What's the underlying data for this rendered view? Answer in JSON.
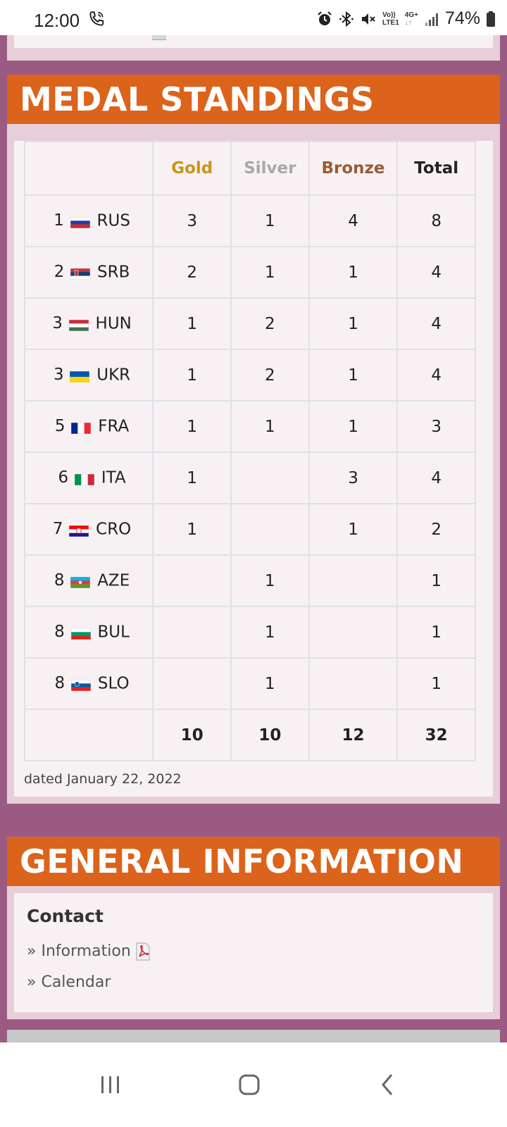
{
  "status_bar": {
    "time": "12:00",
    "network_top": "Vo))",
    "network_bottom": "LTE1",
    "data_label": "4G+",
    "battery_percent": "74%",
    "icons": [
      "phone-call-icon",
      "alarm-icon",
      "bluetooth-icon",
      "mute-icon",
      "signal-icon",
      "battery-icon"
    ]
  },
  "medal_standings": {
    "title": "MEDAL STANDINGS",
    "headers": {
      "nation": "",
      "gold": "Gold",
      "silver": "Silver",
      "bronze": "Bronze",
      "total": "Total"
    },
    "header_colors": {
      "gold": "#c9961a",
      "silver": "#a8a8a8",
      "bronze": "#9a5c35"
    },
    "rows": [
      {
        "rank": "1",
        "code": "RUS",
        "flag": "flag-russia",
        "gold": "3",
        "silver": "1",
        "bronze": "4",
        "total": "8"
      },
      {
        "rank": "2",
        "code": "SRB",
        "flag": "flag-serbia",
        "gold": "2",
        "silver": "1",
        "bronze": "1",
        "total": "4"
      },
      {
        "rank": "3",
        "code": "HUN",
        "flag": "flag-hungary",
        "gold": "1",
        "silver": "2",
        "bronze": "1",
        "total": "4"
      },
      {
        "rank": "3",
        "code": "UKR",
        "flag": "flag-ukraine",
        "gold": "1",
        "silver": "2",
        "bronze": "1",
        "total": "4"
      },
      {
        "rank": "5",
        "code": "FRA",
        "flag": "flag-france",
        "gold": "1",
        "silver": "1",
        "bronze": "1",
        "total": "3"
      },
      {
        "rank": "6",
        "code": "ITA",
        "flag": "flag-italy",
        "gold": "1",
        "silver": "",
        "bronze": "3",
        "total": "4"
      },
      {
        "rank": "7",
        "code": "CRO",
        "flag": "flag-croatia",
        "gold": "1",
        "silver": "",
        "bronze": "1",
        "total": "2"
      },
      {
        "rank": "8",
        "code": "AZE",
        "flag": "flag-azerbaijan",
        "gold": "",
        "silver": "1",
        "bronze": "",
        "total": "1"
      },
      {
        "rank": "8",
        "code": "BUL",
        "flag": "flag-bulgaria",
        "gold": "",
        "silver": "1",
        "bronze": "",
        "total": "1"
      },
      {
        "rank": "8",
        "code": "SLO",
        "flag": "flag-slovenia",
        "gold": "",
        "silver": "1",
        "bronze": "",
        "total": "1"
      }
    ],
    "totals": {
      "gold": "10",
      "silver": "10",
      "bronze": "12",
      "total": "32"
    },
    "dated": "dated January 22, 2022"
  },
  "general_information": {
    "title": "GENERAL INFORMATION",
    "contact_title": "Contact",
    "links": [
      {
        "label": "» Information",
        "icon": "pdf-icon"
      },
      {
        "label": "» Calendar"
      }
    ]
  },
  "nav_bar": {
    "buttons": [
      "recent-apps-icon",
      "home-icon",
      "back-icon"
    ]
  }
}
